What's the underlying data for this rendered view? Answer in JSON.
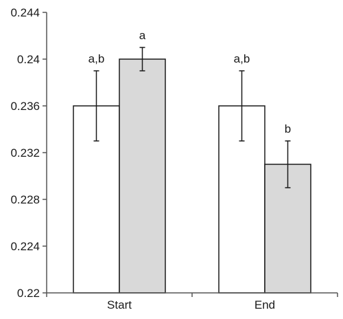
{
  "chart_data": {
    "type": "bar",
    "categories": [
      "Start",
      "End"
    ],
    "series": [
      {
        "color": "#ffffff",
        "values": [
          0.236,
          0.236
        ],
        "error": [
          0.003,
          0.003
        ],
        "labels": [
          "a,b",
          "a,b"
        ]
      },
      {
        "color": "#d9d9d9",
        "values": [
          0.24,
          0.231
        ],
        "error": [
          0.001,
          0.002
        ],
        "labels": [
          "a",
          "b"
        ]
      }
    ],
    "ylim": [
      0.22,
      0.244
    ],
    "yticks": [
      "0.22",
      "0.224",
      "0.228",
      "0.232",
      "0.236",
      "0.24",
      "0.244"
    ],
    "grid": false,
    "legend": "none"
  }
}
